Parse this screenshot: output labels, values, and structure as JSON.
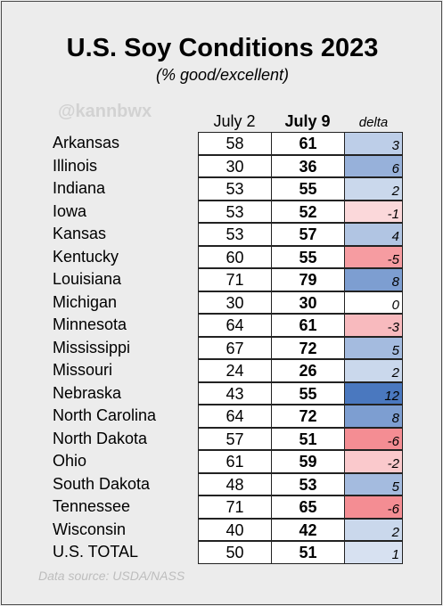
{
  "chart_data": {
    "type": "table",
    "title": "U.S. Soy Conditions 2023",
    "subtitle": "(% good/excellent)",
    "watermark": "@kannbwx",
    "source": "Data source: USDA/NASS",
    "columns": [
      "July 2",
      "July 9",
      "delta"
    ],
    "rows": [
      {
        "state": "Arkansas",
        "july2": 58,
        "july9": 61,
        "delta": 3
      },
      {
        "state": "Illinois",
        "july2": 30,
        "july9": 36,
        "delta": 6
      },
      {
        "state": "Indiana",
        "july2": 53,
        "july9": 55,
        "delta": 2
      },
      {
        "state": "Iowa",
        "july2": 53,
        "july9": 52,
        "delta": -1
      },
      {
        "state": "Kansas",
        "july2": 53,
        "july9": 57,
        "delta": 4
      },
      {
        "state": "Kentucky",
        "july2": 60,
        "july9": 55,
        "delta": -5
      },
      {
        "state": "Louisiana",
        "july2": 71,
        "july9": 79,
        "delta": 8
      },
      {
        "state": "Michigan",
        "july2": 30,
        "july9": 30,
        "delta": 0
      },
      {
        "state": "Minnesota",
        "july2": 64,
        "july9": 61,
        "delta": -3
      },
      {
        "state": "Mississippi",
        "july2": 67,
        "july9": 72,
        "delta": 5
      },
      {
        "state": "Missouri",
        "july2": 24,
        "july9": 26,
        "delta": 2
      },
      {
        "state": "Nebraska",
        "july2": 43,
        "july9": 55,
        "delta": 12
      },
      {
        "state": "North Carolina",
        "july2": 64,
        "july9": 72,
        "delta": 8
      },
      {
        "state": "North Dakota",
        "july2": 57,
        "july9": 51,
        "delta": -6
      },
      {
        "state": "Ohio",
        "july2": 61,
        "july9": 59,
        "delta": -2
      },
      {
        "state": "South Dakota",
        "july2": 48,
        "july9": 53,
        "delta": 5
      },
      {
        "state": "Tennessee",
        "july2": 71,
        "july9": 65,
        "delta": -6
      },
      {
        "state": "Wisconsin",
        "july2": 40,
        "july9": 42,
        "delta": 2
      },
      {
        "state": "U.S. TOTAL",
        "july2": 50,
        "july9": 51,
        "delta": 1
      }
    ],
    "colors": {
      "positive_max": "#4a78bf",
      "negative_max": "#f0626a",
      "neutral": "#ffffff"
    }
  }
}
